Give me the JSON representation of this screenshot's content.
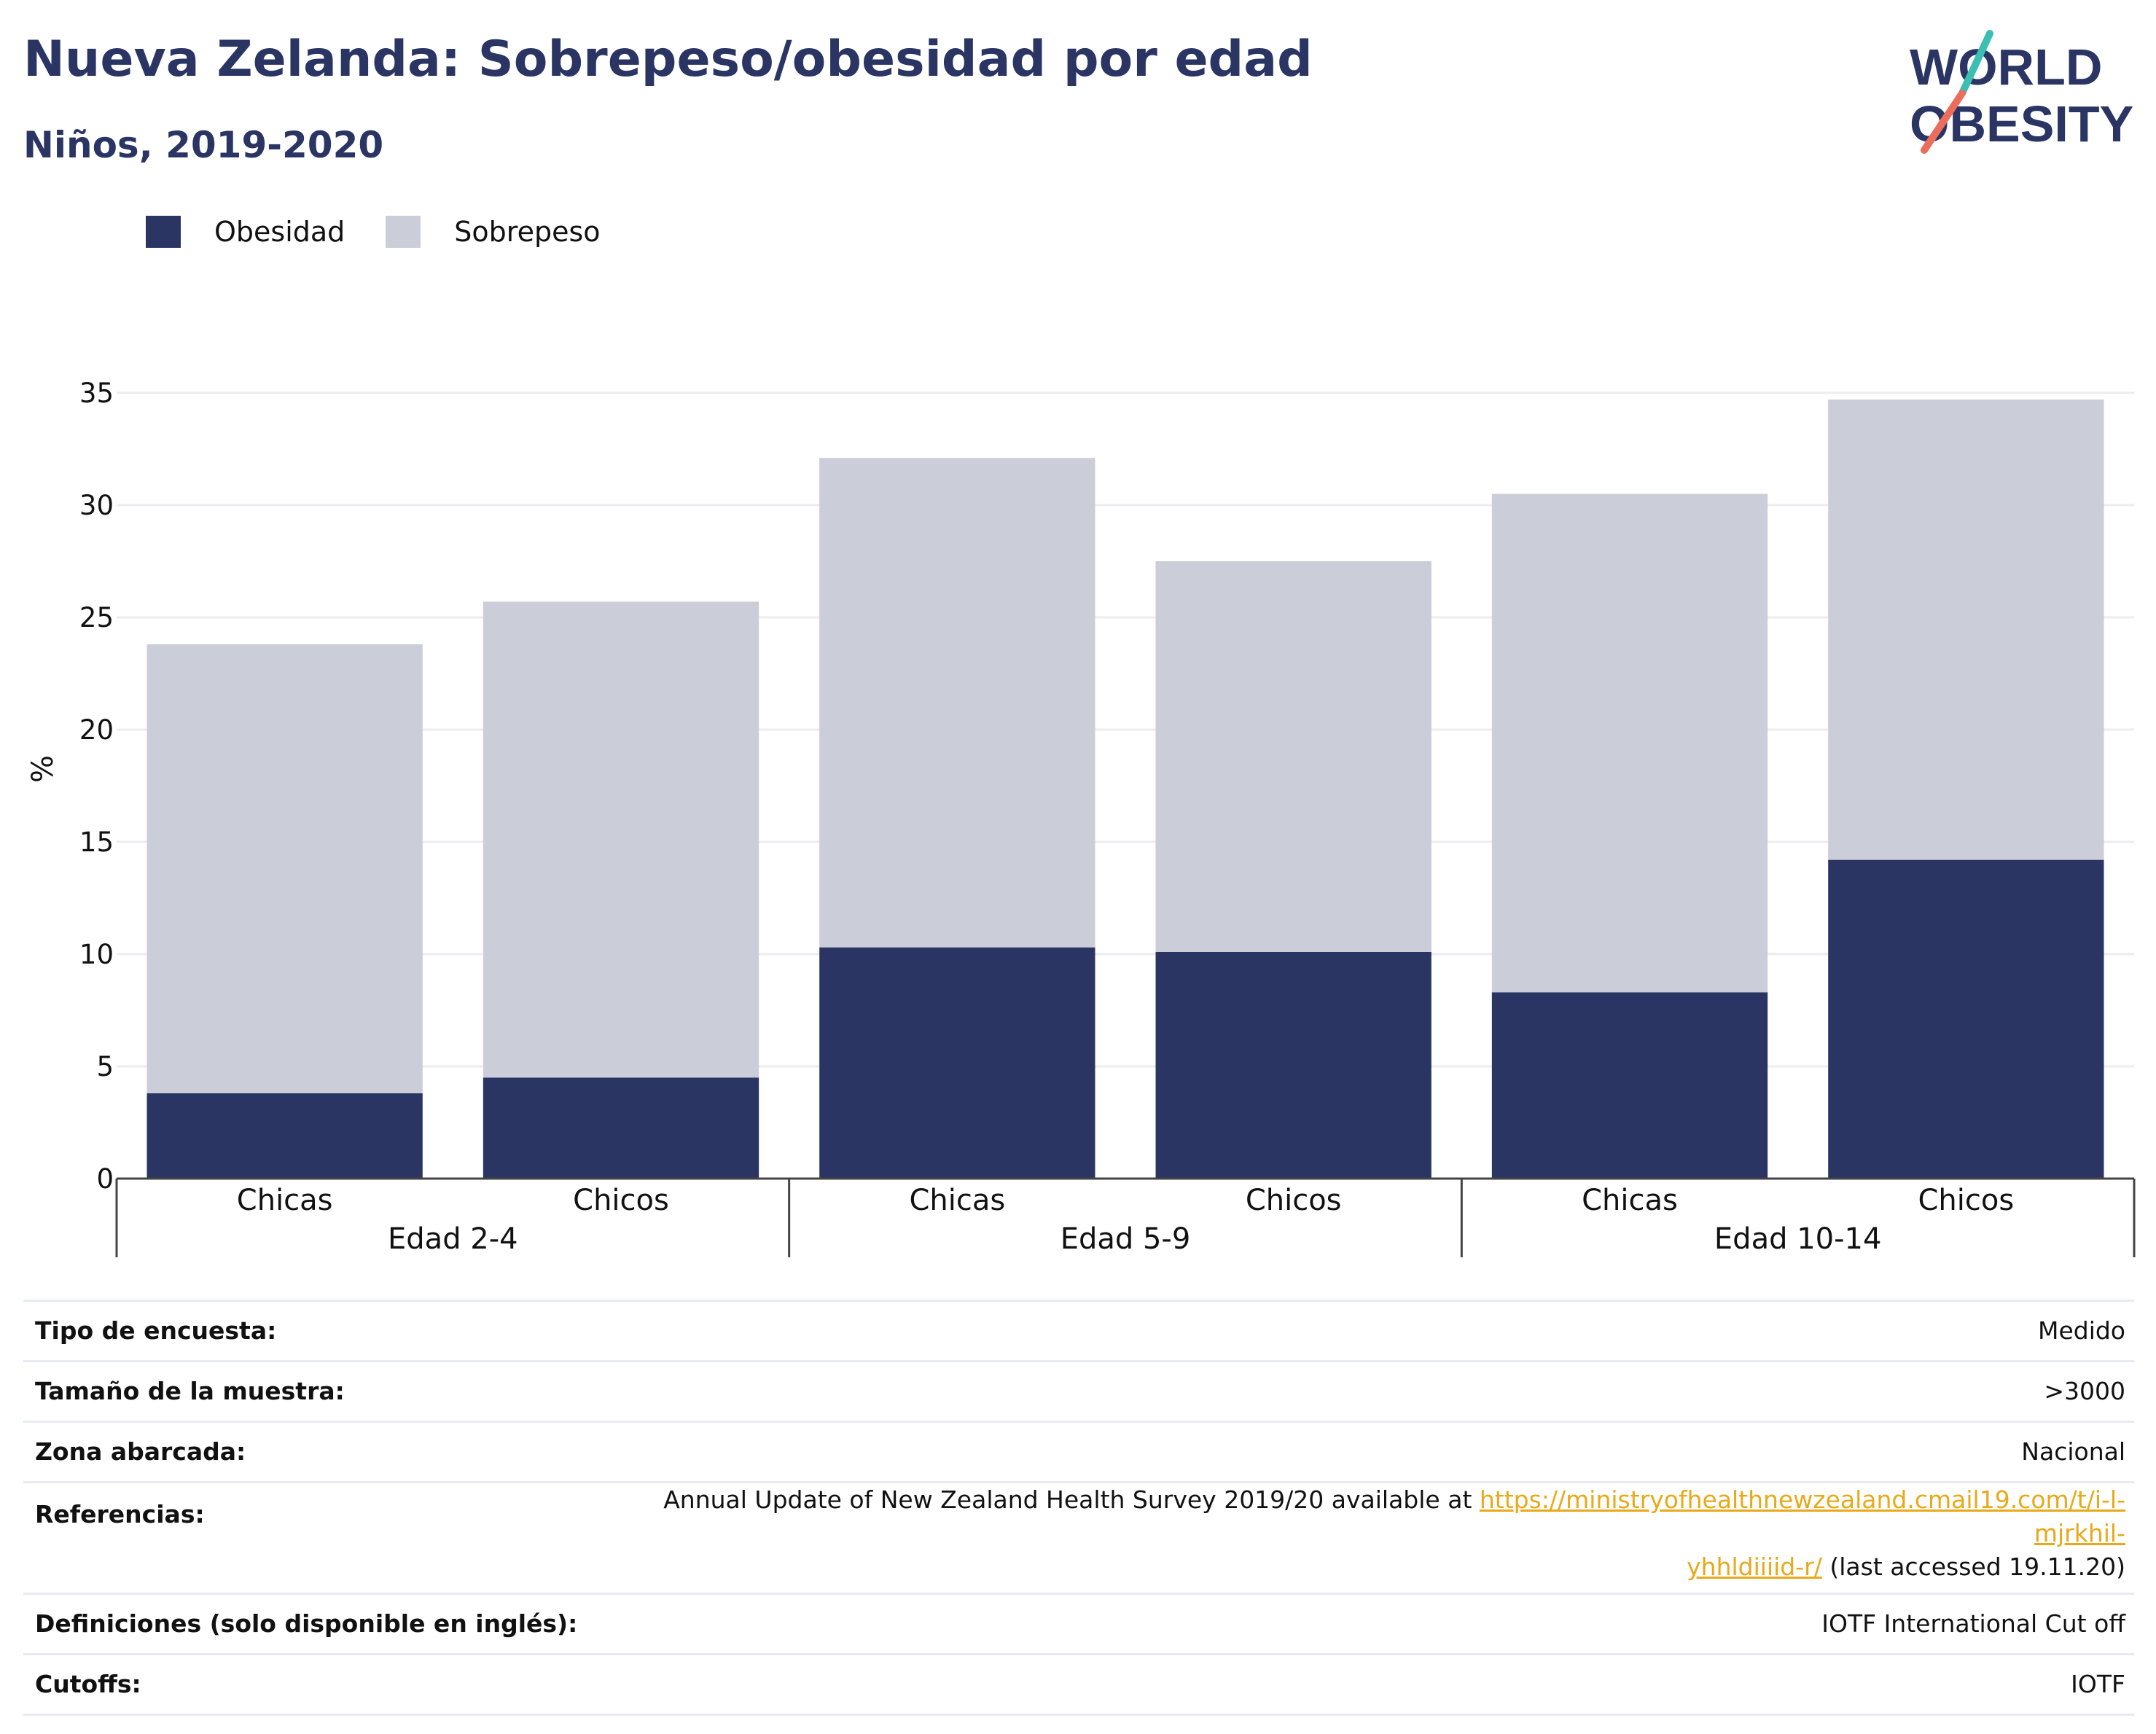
{
  "header": {
    "title": "Nueva Zelanda: Sobrepeso/obesidad por edad",
    "subtitle": "Niños, 2019-2020"
  },
  "logo": {
    "line1": "WORLD",
    "line2": "OBESITY"
  },
  "colors": {
    "obesidad": "#2a3564",
    "sobrepeso": "#cbcdd8",
    "title": "#2a3564",
    "link": "#e8a91a",
    "logo_teal": "#3bbfb2",
    "logo_coral": "#ec6d5b"
  },
  "chart_data": {
    "type": "bar",
    "stacked": true,
    "categories": [
      "Chicas",
      "Chicos",
      "Chicas",
      "Chicos",
      "Chicas",
      "Chicos"
    ],
    "groups": [
      {
        "label": "Edad 2-4",
        "span": [
          0,
          1
        ]
      },
      {
        "label": "Edad 5-9",
        "span": [
          2,
          3
        ]
      },
      {
        "label": "Edad 10-14",
        "span": [
          4,
          5
        ]
      }
    ],
    "series": [
      {
        "name": "Obesidad",
        "values": [
          3.8,
          4.5,
          10.3,
          10.1,
          8.3,
          14.2
        ]
      },
      {
        "name": "Sobrepeso",
        "values": [
          20.0,
          21.2,
          21.8,
          17.4,
          22.2,
          20.5
        ]
      }
    ],
    "ylabel": "%",
    "ylim": [
      0,
      35
    ],
    "yticks": [
      0,
      5,
      10,
      15,
      20,
      25,
      30,
      35
    ],
    "grid": true,
    "legend_position": "top-left"
  },
  "info": [
    {
      "key": "Tipo de encuesta:",
      "value": "Medido"
    },
    {
      "key": "Tamaño de la muestra:",
      "value": ">3000"
    },
    {
      "key": "Zona abarcada:",
      "value": "Nacional"
    },
    {
      "key": "Referencias:",
      "value_prefix": "Annual Update of New Zealand Health Survey 2019/20 available at ",
      "link_part1": "https://ministryofhealthnewzealand.cmail19.com/t/i-l-mjrkhil-",
      "link_part2": "yhhldiiiid-r/",
      "value_suffix": " (last accessed 19.11.20)"
    },
    {
      "key": "Definiciones (solo disponible en inglés):",
      "value": "IOTF International Cut off"
    },
    {
      "key": "Cutoffs:",
      "value": "IOTF"
    }
  ]
}
